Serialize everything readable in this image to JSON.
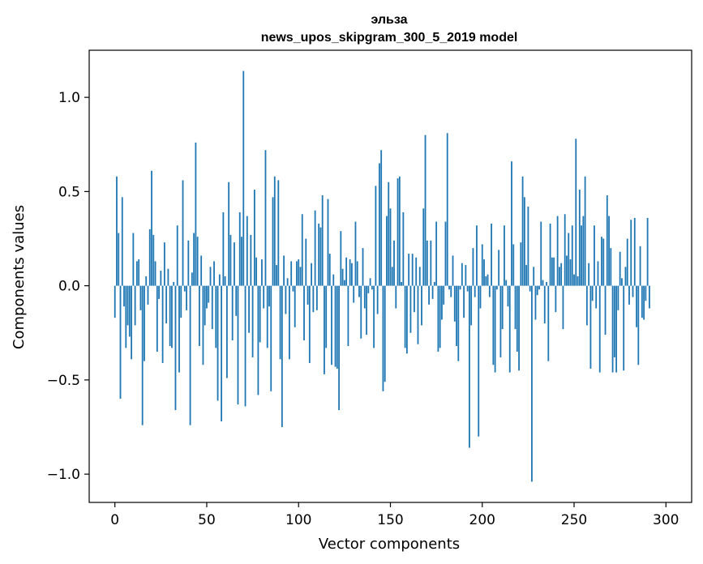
{
  "chart_data": {
    "type": "bar",
    "title": "эльза",
    "subtitle": "news_upos_skipgram_300_5_2019 model",
    "xlabel": "Vector components",
    "ylabel": "Components values",
    "xlim": [
      -14,
      314
    ],
    "ylim": [
      -1.15,
      1.25
    ],
    "xticks": [
      0,
      50,
      100,
      150,
      200,
      250,
      300
    ],
    "xtick_labels": [
      "0",
      "50",
      "100",
      "150",
      "200",
      "250",
      "300"
    ],
    "yticks": [
      -1.0,
      -0.5,
      0.0,
      0.5,
      1.0
    ],
    "ytick_labels": [
      "−1.0",
      "−0.5",
      "0.0",
      "0.5",
      "1.0"
    ],
    "grid": false,
    "bar_color": "#1f77b4",
    "x_start": 0,
    "values": [
      -0.17,
      0.58,
      0.28,
      -0.6,
      0.47,
      -0.11,
      -0.33,
      -0.21,
      -0.27,
      -0.39,
      0.28,
      -0.21,
      0.13,
      0.14,
      -0.13,
      -0.74,
      -0.4,
      0.05,
      -0.1,
      0.3,
      0.61,
      0.27,
      0.13,
      -0.35,
      -0.07,
      0.08,
      -0.41,
      0.23,
      -0.2,
      0.09,
      -0.32,
      -0.33,
      0.02,
      -0.66,
      0.32,
      -0.46,
      -0.17,
      0.56,
      -0.03,
      -0.13,
      0.24,
      -0.74,
      0.07,
      0.28,
      0.76,
      0.26,
      -0.32,
      0.16,
      -0.42,
      -0.21,
      -0.12,
      -0.09,
      0.1,
      -0.23,
      0.13,
      -0.33,
      -0.61,
      0.06,
      -0.72,
      0.39,
      0.05,
      -0.49,
      0.55,
      0.27,
      -0.29,
      0.23,
      -0.16,
      -0.63,
      0.39,
      0.26,
      1.14,
      -0.64,
      0.37,
      -0.25,
      0.27,
      -0.38,
      0.51,
      0.15,
      -0.58,
      -0.3,
      0.14,
      -0.12,
      0.72,
      -0.33,
      -0.11,
      -0.56,
      0.47,
      0.58,
      0.11,
      0.56,
      -0.39,
      -0.75,
      0.16,
      -0.15,
      0.04,
      -0.39,
      0.13,
      -0.03,
      -0.22,
      0.13,
      0.14,
      0.1,
      0.38,
      -0.29,
      0.25,
      -0.1,
      -0.41,
      0.12,
      -0.14,
      0.4,
      -0.13,
      0.33,
      0.31,
      0.48,
      -0.47,
      -0.33,
      0.46,
      0.17,
      -0.42,
      0.06,
      -0.43,
      -0.44,
      -0.66,
      0.29,
      0.09,
      0.03,
      0.15,
      -0.32,
      0.14,
      0.12,
      -0.09,
      0.34,
      0.13,
      -0.06,
      -0.28,
      0.2,
      -0.12,
      -0.26,
      -0.04,
      0.04,
      -0.02,
      -0.33,
      0.53,
      -0.15,
      0.65,
      0.72,
      -0.56,
      -0.51,
      0.37,
      0.55,
      0.41,
      0.1,
      0.24,
      -0.12,
      0.57,
      0.58,
      0.02,
      0.39,
      -0.33,
      -0.36,
      0.17,
      -0.25,
      0.17,
      -0.14,
      0.15,
      -0.31,
      0.1,
      -0.21,
      0.41,
      0.8,
      0.24,
      -0.1,
      0.24,
      -0.07,
      0.02,
      0.34,
      -0.35,
      -0.33,
      -0.18,
      -0.1,
      0.34,
      0.81,
      -0.02,
      -0.06,
      0.16,
      -0.19,
      -0.32,
      -0.4,
      -0.02,
      0.12,
      -0.17,
      0.11,
      -0.03,
      -0.86,
      -0.21,
      0.2,
      -0.06,
      0.32,
      -0.8,
      -0.12,
      0.22,
      0.14,
      0.05,
      0.06,
      -0.06,
      0.33,
      -0.42,
      -0.46,
      -0.02,
      0.19,
      -0.38,
      -0.23,
      0.32,
      0.03,
      -0.11,
      -0.46,
      0.66,
      0.22,
      -0.23,
      -0.35,
      -0.45,
      0.23,
      0.58,
      0.47,
      0.11,
      0.42,
      -0.03,
      -1.04,
      0.1,
      -0.18,
      -0.05,
      -0.02,
      0.34,
      0.03,
      -0.2,
      0.02,
      -0.4,
      0.33,
      0.15,
      0.15,
      -0.14,
      0.37,
      0.1,
      0.12,
      -0.23,
      0.38,
      0.16,
      0.28,
      0.14,
      0.32,
      0.06,
      0.78,
      0.05,
      0.51,
      0.32,
      0.37,
      0.58,
      -0.21,
      0.12,
      -0.44,
      -0.08,
      0.32,
      -0.12,
      0.13,
      -0.46,
      0.26,
      0.25,
      -0.26,
      0.48,
      0.37,
      0.2,
      -0.46,
      -0.38,
      -0.46,
      -0.13,
      0.18,
      0.04,
      -0.45,
      0.1,
      0.25,
      -0.1,
      0.35,
      -0.06,
      0.36,
      -0.22,
      -0.42,
      0.21,
      -0.17,
      -0.18,
      -0.08,
      0.36,
      -0.12
    ]
  }
}
